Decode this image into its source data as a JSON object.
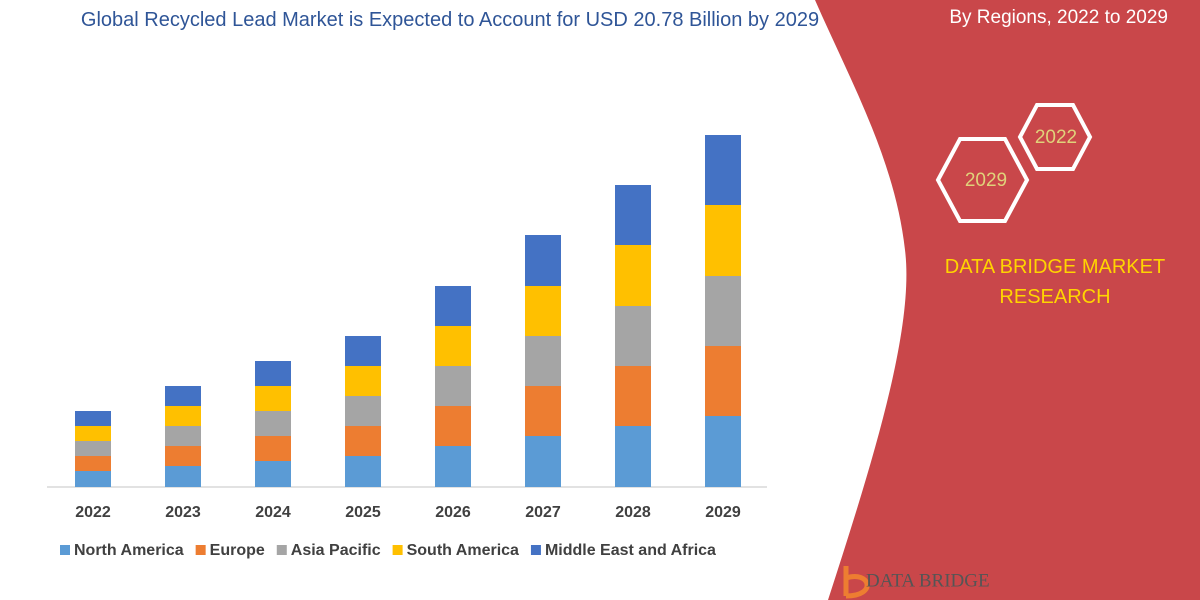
{
  "chart_data": {
    "type": "stacked_bar",
    "title": "Global Recycled Lead Market is Expected to Account for USD 20.78 Billion by 2029",
    "categories": [
      "2022",
      "2023",
      "2024",
      "2025",
      "2026",
      "2027",
      "2028",
      "2029"
    ],
    "series": [
      {
        "name": "North America",
        "color": "#5b9bd5",
        "values": [
          16,
          21,
          26,
          31,
          41,
          51,
          61,
          71
        ]
      },
      {
        "name": "Europe",
        "color": "#ed7d31",
        "values": [
          15,
          20,
          25,
          30,
          40,
          50,
          60,
          70
        ]
      },
      {
        "name": "Asia Pacific",
        "color": "#a5a5a5",
        "values": [
          15,
          20,
          25,
          30,
          40,
          50,
          60,
          70
        ]
      },
      {
        "name": "South America",
        "color": "#ffc000",
        "values": [
          15,
          20,
          25,
          30,
          40,
          50,
          61,
          71
        ]
      },
      {
        "name": "Middle East and Africa",
        "color": "#4472c4",
        "values": [
          15,
          20,
          25,
          30,
          40,
          51,
          60,
          70
        ]
      }
    ],
    "legend": "bottom"
  },
  "panel": {
    "subtitle": "By Regions, 2022 to 2029",
    "badges": [
      "2022",
      "2029"
    ],
    "brand": "DATA BRIDGE MARKET RESEARCH",
    "logo": "DATA BRIDGE"
  }
}
